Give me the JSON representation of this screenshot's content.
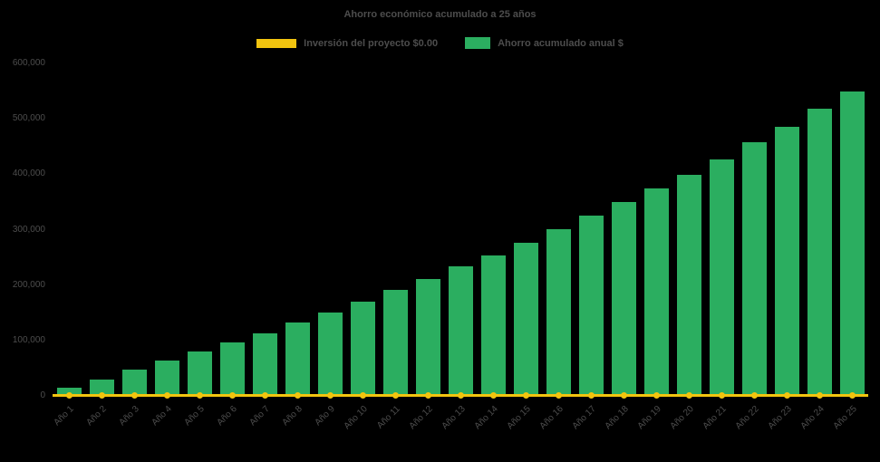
{
  "chart_data": {
    "type": "bar",
    "title": "Ahorro económico acumulado a 25 años",
    "categories": [
      "Año 1",
      "Año 2",
      "Año 3",
      "Año 4",
      "Año 5",
      "Año 6",
      "Año 7",
      "Año 8",
      "Año 9",
      "Año 10",
      "Año 11",
      "Año 12",
      "Año 13",
      "Año 14",
      "Año 15",
      "Año 16",
      "Año 17",
      "Año 18",
      "Año 19",
      "Año 20",
      "Año 21",
      "Año 22",
      "Año 23",
      "Año 24",
      "Año 25"
    ],
    "series": [
      {
        "name": "Inversión del proyecto $0.00",
        "type": "line",
        "color": "#F2C40F",
        "values": [
          0,
          0,
          0,
          0,
          0,
          0,
          0,
          0,
          0,
          0,
          0,
          0,
          0,
          0,
          0,
          0,
          0,
          0,
          0,
          0,
          0,
          0,
          0,
          0,
          0
        ]
      },
      {
        "name": "Ahorro acumulado anual $",
        "type": "bar",
        "color": "#2BAE60",
        "values": [
          15000,
          30000,
          47000,
          63000,
          80000,
          96000,
          113000,
          133000,
          151000,
          170000,
          191000,
          211000,
          233000,
          254000,
          276000,
          300000,
          325000,
          350000,
          374000,
          399000,
          426000,
          458000,
          486000,
          519000,
          550000
        ]
      }
    ],
    "xlabel": "",
    "ylabel": "",
    "ylim": [
      0,
      600000
    ],
    "ytick_interval": 100000,
    "yticks": [
      "0",
      "100,000",
      "200,000",
      "300,000",
      "400,000",
      "500,000",
      "600,000"
    ],
    "grid": false,
    "legend_position": "top",
    "background": "#000000",
    "text_color": "#4d4d4d"
  }
}
